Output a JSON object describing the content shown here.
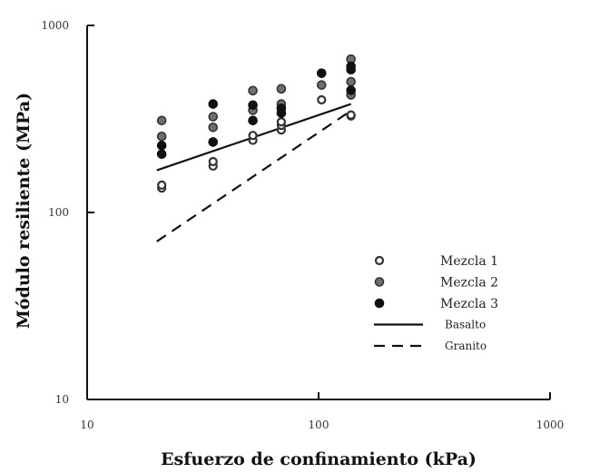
{
  "chart_data": {
    "type": "scatter",
    "x_scale": "log",
    "y_scale": "log",
    "xlabel": "Esfuerzo de confinamiento (kPa)",
    "ylabel": "Módulo resiliente (MPa)",
    "xlim": [
      10,
      1000
    ],
    "ylim": [
      10,
      1000
    ],
    "x_ticks": [
      {
        "value": 10,
        "label": "10"
      },
      {
        "value": 100,
        "label": "100"
      },
      {
        "value": 1000,
        "label": "1000"
      }
    ],
    "y_ticks": [
      {
        "value": 10,
        "label": "10"
      },
      {
        "value": 100,
        "label": "100"
      },
      {
        "value": 1000,
        "label": "1000"
      }
    ],
    "grid": false,
    "legend_position": "right",
    "series": [
      {
        "name": "Mezcla 1",
        "kind": "scatter",
        "marker": "open-circle",
        "color": "#333333",
        "points": [
          [
            21,
            135
          ],
          [
            21,
            140
          ],
          [
            35,
            177
          ],
          [
            35,
            187
          ],
          [
            52,
            243
          ],
          [
            52,
            258
          ],
          [
            69,
            276
          ],
          [
            69,
            292
          ],
          [
            69,
            305
          ],
          [
            103,
            400
          ],
          [
            138,
            328
          ],
          [
            138,
            332
          ]
        ]
      },
      {
        "name": "Mezcla 2",
        "kind": "scatter",
        "marker": "gray-circle",
        "color": "#6e6e6e",
        "points": [
          [
            21,
            255
          ],
          [
            21,
            310
          ],
          [
            35,
            285
          ],
          [
            35,
            325
          ],
          [
            52,
            352
          ],
          [
            52,
            448
          ],
          [
            69,
            380
          ],
          [
            69,
            458
          ],
          [
            103,
            480
          ],
          [
            138,
            425
          ],
          [
            138,
            500
          ],
          [
            138,
            660
          ]
        ]
      },
      {
        "name": "Mezcla 3",
        "kind": "scatter",
        "marker": "filled-circle",
        "color": "#111111",
        "points": [
          [
            21,
            205
          ],
          [
            21,
            228
          ],
          [
            35,
            238
          ],
          [
            35,
            380
          ],
          [
            52,
            310
          ],
          [
            52,
            375
          ],
          [
            69,
            340
          ],
          [
            69,
            360
          ],
          [
            103,
            555
          ],
          [
            138,
            450
          ],
          [
            138,
            580
          ],
          [
            138,
            605
          ]
        ]
      },
      {
        "name": "Basalto",
        "kind": "line",
        "style": "solid",
        "color": "#111111",
        "points": [
          [
            20,
            168
          ],
          [
            138,
            380
          ]
        ]
      },
      {
        "name": "Granito",
        "kind": "line",
        "style": "dashed",
        "color": "#111111",
        "points": [
          [
            20,
            70
          ],
          [
            138,
            350
          ]
        ]
      }
    ]
  }
}
